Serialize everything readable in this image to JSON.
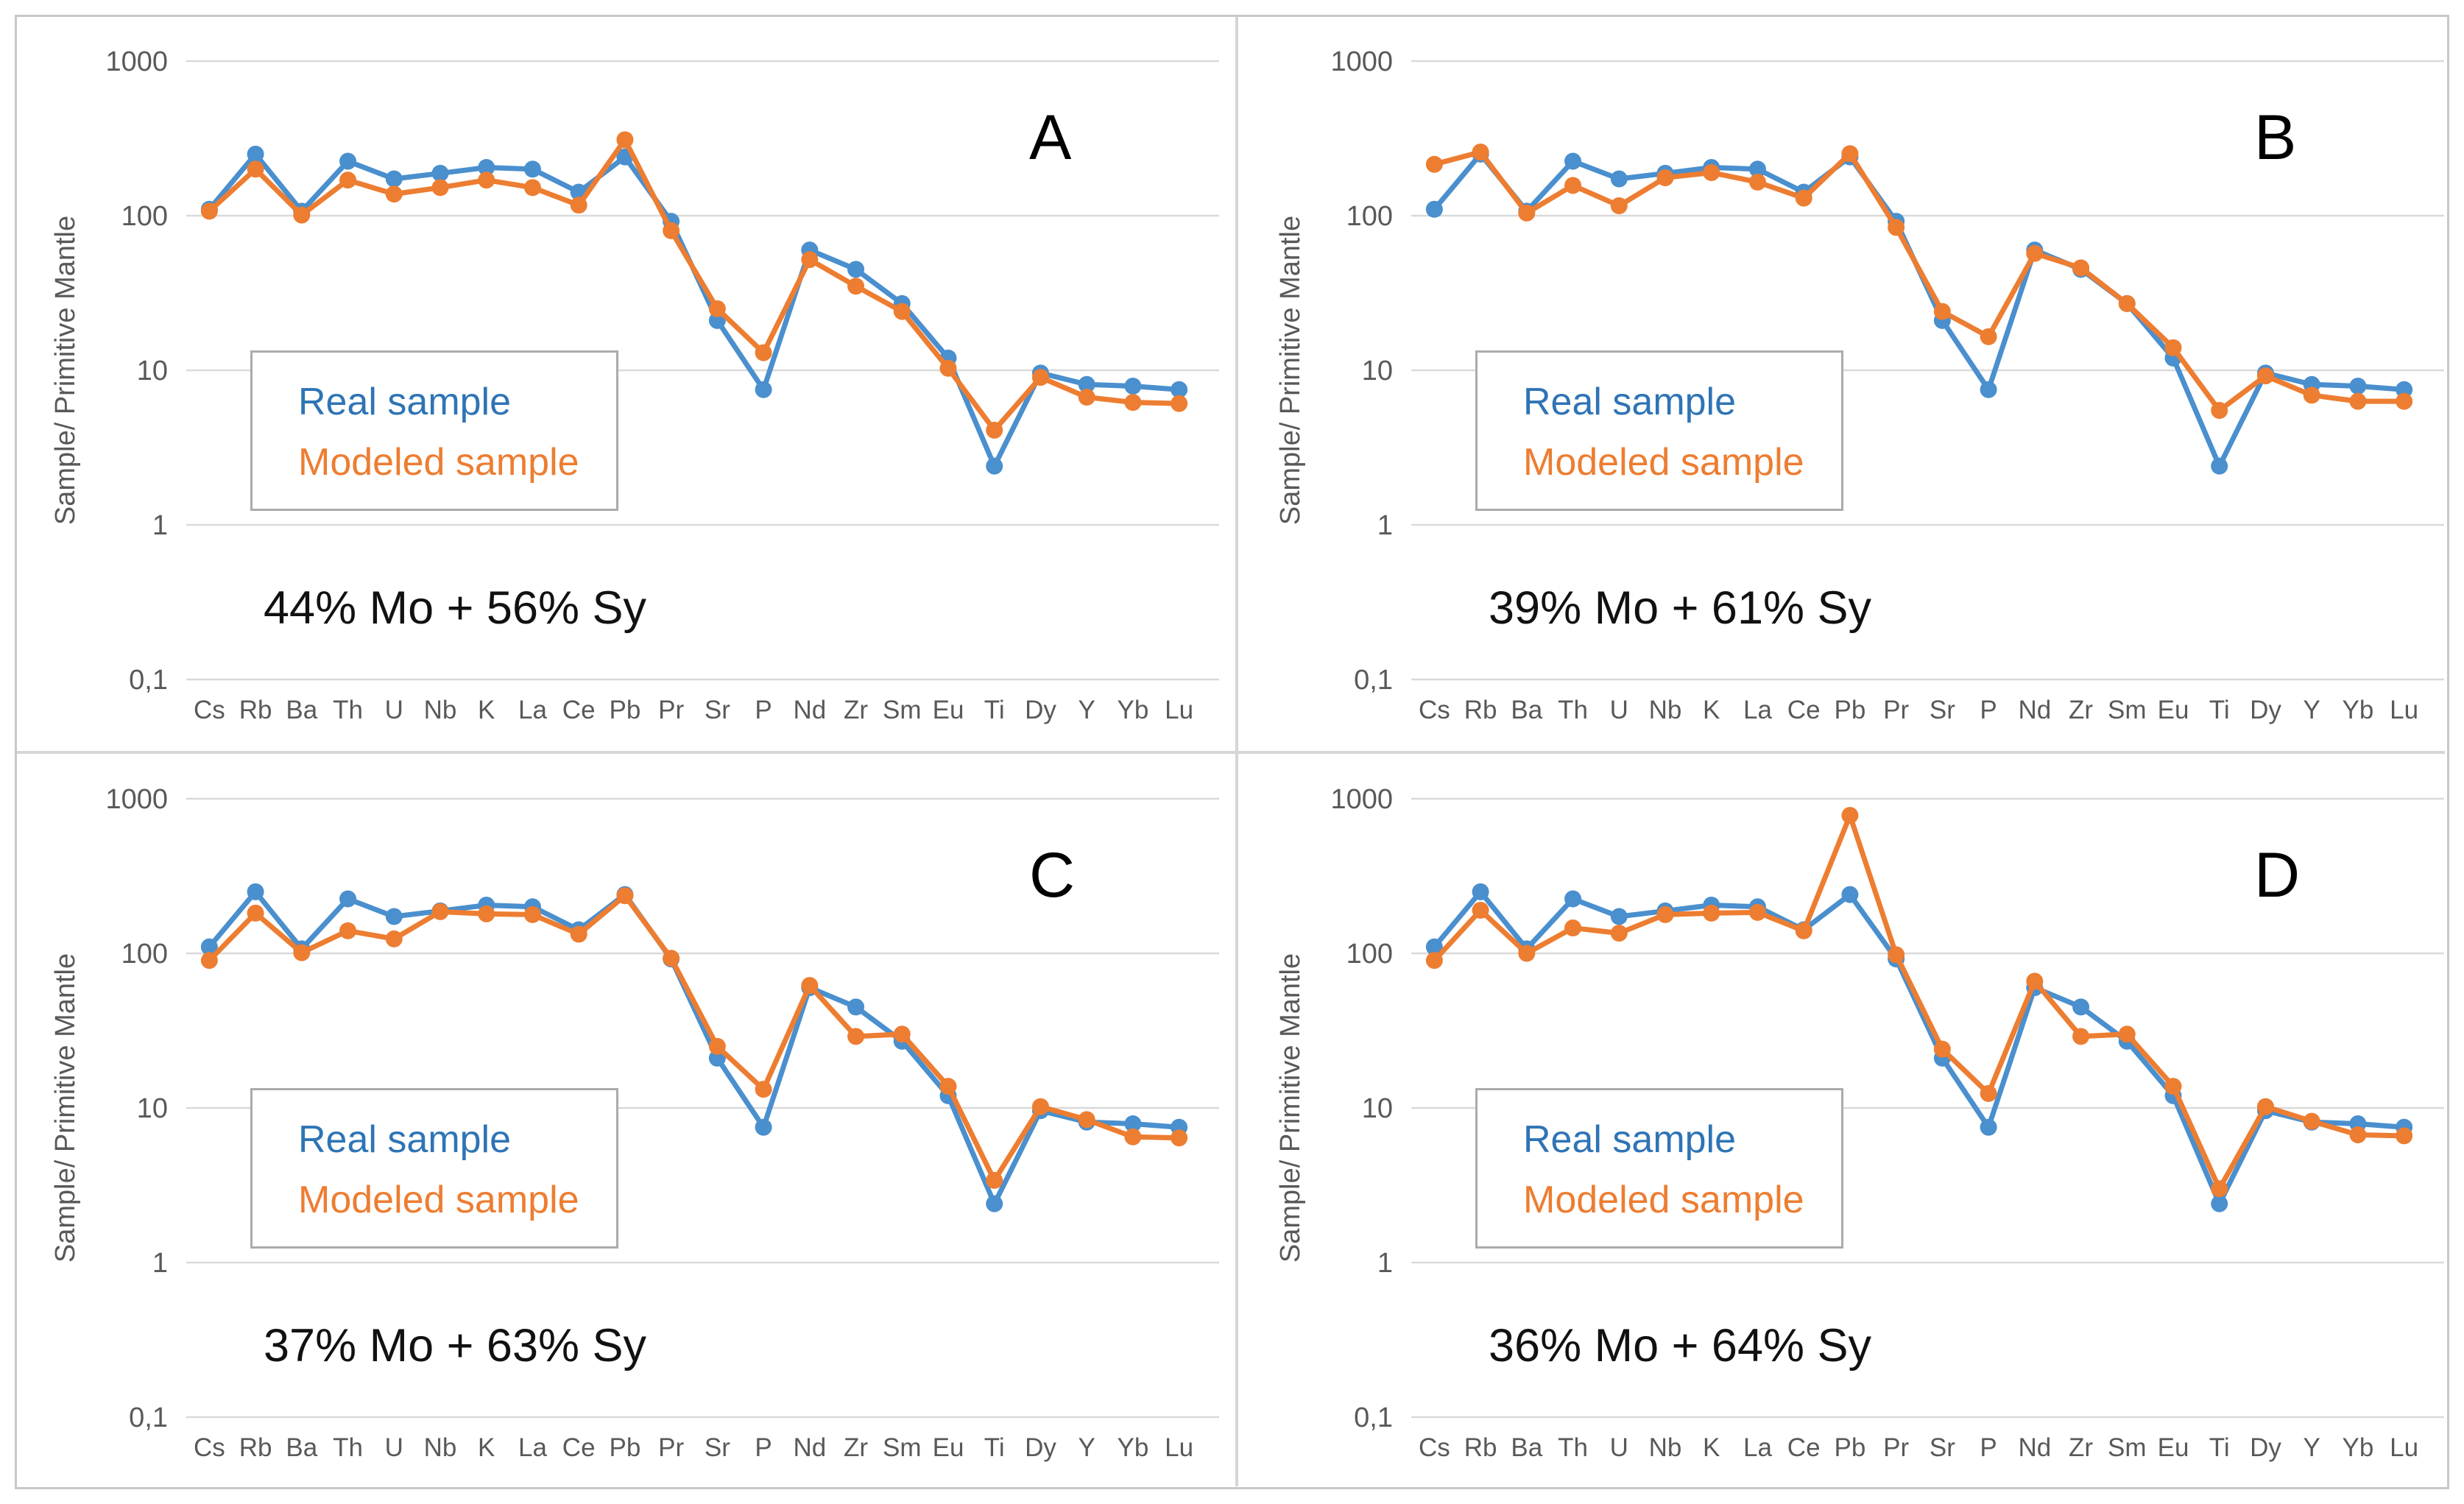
{
  "figure": {
    "ylabel": "Sample/ Primitive Mantle",
    "ytick_labels": [
      "1000",
      "100",
      "10",
      "1",
      "0,1"
    ],
    "colors": {
      "real_series": "#4a8fce",
      "modeled_series": "#ed7d31",
      "real_legend_text": "#2e74b5",
      "modeled_legend_text": "#ed7d31",
      "gridline": "#d9d9d9",
      "axis_text": "#595959",
      "outer_border": "#c8c8c8",
      "legend_border": "#ababab"
    }
  },
  "chart_data": [
    {
      "letter": "A",
      "annotation": "44% Mo + 56% Sy",
      "type": "line",
      "y_scale": "log",
      "ylim": [
        0.1,
        1000
      ],
      "yticks": [
        1000,
        100,
        10,
        1,
        0.1
      ],
      "ylabel": "Sample/ Primitive Mantle",
      "categories": [
        "Cs",
        "Rb",
        "Ba",
        "Th",
        "U",
        "Nb",
        "K",
        "La",
        "Ce",
        "Pb",
        "Pr",
        "Sr",
        "P",
        "Nd",
        "Zr",
        "Sm",
        "Eu",
        "Ti",
        "Dy",
        "Y",
        "Yb",
        "Lu"
      ],
      "series": [
        {
          "name": "Real sample",
          "values": [
            110,
            250,
            107,
            225,
            173,
            188,
            205,
            200,
            142,
            240,
            92,
            21,
            7.5,
            60,
            45,
            27,
            12,
            2.4,
            9.6,
            8.1,
            7.9,
            7.5
          ]
        },
        {
          "name": "Modeled sample",
          "values": [
            107,
            200,
            101,
            170,
            138,
            152,
            170,
            152,
            117,
            310,
            80,
            25,
            13,
            52,
            35,
            24,
            10.3,
            4.1,
            9.0,
            6.7,
            6.2,
            6.1
          ]
        }
      ]
    },
    {
      "letter": "B",
      "annotation": "39% Mo + 61% Sy",
      "type": "line",
      "y_scale": "log",
      "ylim": [
        0.1,
        1000
      ],
      "yticks": [
        1000,
        100,
        10,
        1,
        0.1
      ],
      "ylabel": "Sample/ Primitive Mantle",
      "categories": [
        "Cs",
        "Rb",
        "Ba",
        "Th",
        "U",
        "Nb",
        "K",
        "La",
        "Ce",
        "Pb",
        "Pr",
        "Sr",
        "P",
        "Nd",
        "Zr",
        "Sm",
        "Eu",
        "Ti",
        "Dy",
        "Y",
        "Yb",
        "Lu"
      ],
      "series": [
        {
          "name": "Real sample",
          "values": [
            110,
            250,
            107,
            225,
            173,
            188,
            205,
            200,
            142,
            240,
            92,
            21,
            7.5,
            60,
            45,
            27,
            12,
            2.4,
            9.6,
            8.1,
            7.9,
            7.5
          ]
        },
        {
          "name": "Modeled sample",
          "values": [
            215,
            258,
            104,
            157,
            116,
            176,
            190,
            165,
            130,
            252,
            84,
            24,
            16.5,
            57,
            46,
            27,
            14,
            5.5,
            9.2,
            6.9,
            6.3,
            6.3
          ]
        }
      ]
    },
    {
      "letter": "C",
      "annotation": "37% Mo + 63% Sy",
      "type": "line",
      "y_scale": "log",
      "ylim": [
        0.1,
        1000
      ],
      "yticks": [
        1000,
        100,
        10,
        1,
        0.1
      ],
      "ylabel": "Sample/ Primitive Mantle",
      "categories": [
        "Cs",
        "Rb",
        "Ba",
        "Th",
        "U",
        "Nb",
        "K",
        "La",
        "Ce",
        "Pb",
        "Pr",
        "Sr",
        "P",
        "Nd",
        "Zr",
        "Sm",
        "Eu",
        "Ti",
        "Dy",
        "Y",
        "Yb",
        "Lu"
      ],
      "series": [
        {
          "name": "Real sample",
          "values": [
            110,
            250,
            107,
            225,
            173,
            188,
            205,
            200,
            142,
            240,
            92,
            21,
            7.5,
            60,
            45,
            27,
            12,
            2.4,
            9.6,
            8.1,
            7.9,
            7.5
          ]
        },
        {
          "name": "Modeled sample",
          "values": [
            90,
            182,
            101,
            140,
            124,
            186,
            180,
            178,
            133,
            236,
            93,
            25,
            13.2,
            62,
            29,
            30,
            13.8,
            3.4,
            10.2,
            8.4,
            6.5,
            6.4
          ]
        }
      ]
    },
    {
      "letter": "D",
      "annotation": "36% Mo + 64% Sy",
      "type": "line",
      "y_scale": "log",
      "ylim": [
        0.1,
        1000
      ],
      "yticks": [
        1000,
        100,
        10,
        1,
        0.1
      ],
      "ylabel": "Sample/ Primitive Mantle",
      "categories": [
        "Cs",
        "Rb",
        "Ba",
        "Th",
        "U",
        "Nb",
        "K",
        "La",
        "Ce",
        "Pb",
        "Pr",
        "Sr",
        "P",
        "Nd",
        "Zr",
        "Sm",
        "Eu",
        "Ti",
        "Dy",
        "Y",
        "Yb",
        "Lu"
      ],
      "series": [
        {
          "name": "Real sample",
          "values": [
            110,
            250,
            107,
            225,
            173,
            188,
            205,
            200,
            142,
            240,
            92,
            21,
            7.5,
            60,
            45,
            27,
            12,
            2.4,
            9.6,
            8.1,
            7.9,
            7.5
          ]
        },
        {
          "name": "Modeled sample",
          "values": [
            90,
            190,
            100,
            146,
            135,
            178,
            182,
            184,
            140,
            780,
            98,
            24,
            12.4,
            66,
            29,
            30,
            13.8,
            3.0,
            10.2,
            8.2,
            6.7,
            6.6
          ]
        }
      ]
    }
  ]
}
